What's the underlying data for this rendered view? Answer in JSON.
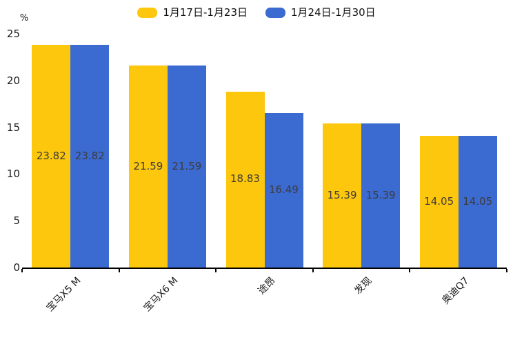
{
  "chart_data": {
    "type": "bar",
    "title": "",
    "ylabel": "%",
    "xlabel": "",
    "ylim": [
      0,
      25
    ],
    "yticks": [
      0,
      5,
      10,
      15,
      20,
      25
    ],
    "grid": false,
    "legend_position": "top",
    "value_labels": true,
    "categories": [
      "宝马X5 M",
      "宝马X6 M",
      "途昂",
      "发现",
      "奥迪Q7"
    ],
    "series": [
      {
        "name": "1月17日-1月23日",
        "color": "#fdc70d",
        "values": [
          23.82,
          21.59,
          18.83,
          15.39,
          14.05
        ]
      },
      {
        "name": "1月24日-1月30日",
        "color": "#3b6ad1",
        "values": [
          23.82,
          21.59,
          16.49,
          15.39,
          14.05
        ]
      }
    ],
    "axis_color": "#000000",
    "label_color": "#3c3c3c"
  }
}
